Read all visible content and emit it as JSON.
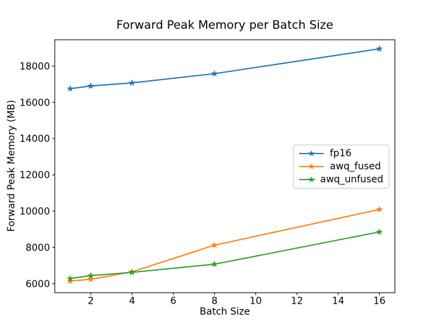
{
  "chart_data": {
    "type": "line",
    "title": "Forward Peak Memory per Batch Size",
    "xlabel": "Batch Size",
    "ylabel": "Forward Peak Memory (MB)",
    "x": [
      1,
      2,
      4,
      8,
      16
    ],
    "series": [
      {
        "name": "fp16",
        "color": "#1f77b4",
        "values": [
          16750,
          16900,
          17070,
          17580,
          18950
        ]
      },
      {
        "name": "awq_fused",
        "color": "#ff7f0e",
        "values": [
          6140,
          6240,
          6650,
          8120,
          10090
        ]
      },
      {
        "name": "awq_unfused",
        "color": "#2ca02c",
        "values": [
          6280,
          6440,
          6620,
          7070,
          8850
        ]
      }
    ],
    "xticks": [
      2,
      4,
      6,
      8,
      10,
      12,
      14,
      16
    ],
    "yticks": [
      6000,
      8000,
      10000,
      12000,
      14000,
      16000,
      18000
    ],
    "xlim": [
      0.25,
      16.75
    ],
    "ylim": [
      5500,
      19450
    ],
    "grid": false,
    "marker": "star",
    "legend_position": "center right",
    "axis_color": "#000000",
    "background_color": "#ffffff"
  }
}
